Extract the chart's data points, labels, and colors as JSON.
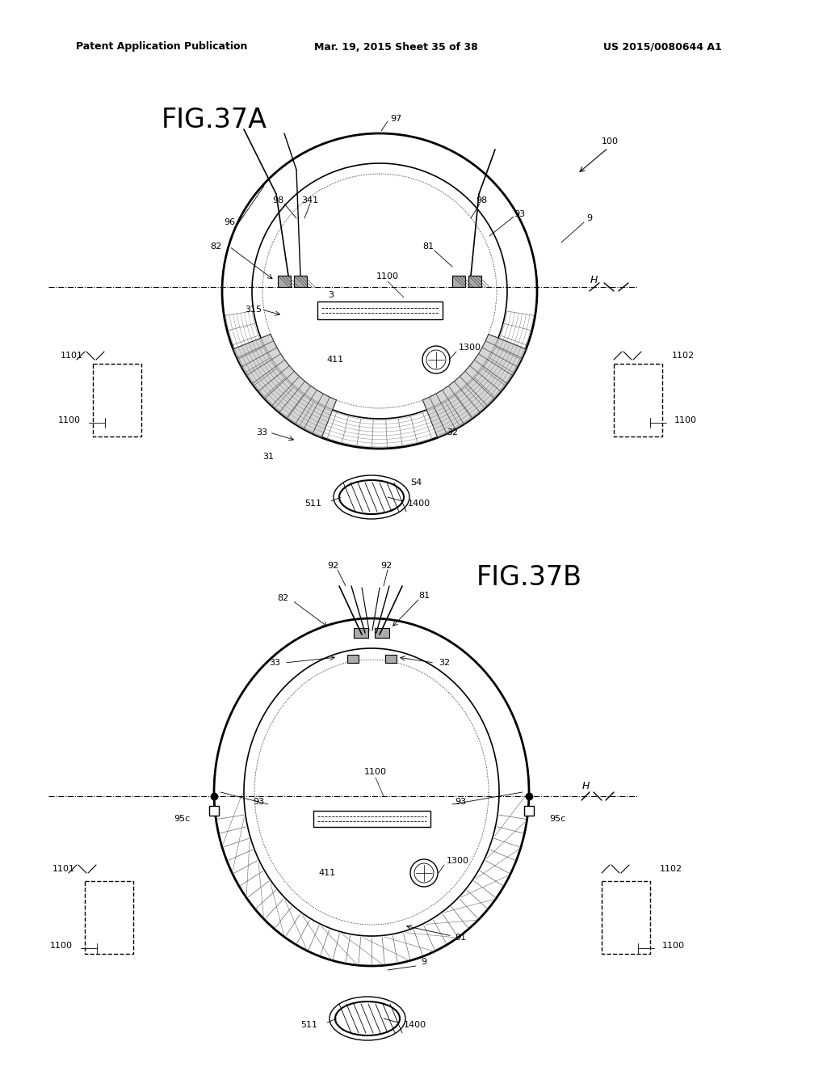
{
  "bg_color": "#ffffff",
  "text_color": "#000000",
  "header_text": "Patent Application Publication",
  "header_date": "Mar. 19, 2015 Sheet 35 of 38",
  "header_patent": "US 2015/0080644 A1",
  "fig_a_title": "FIG.37A",
  "fig_b_title": "FIG.37B",
  "line_color": "#000000"
}
